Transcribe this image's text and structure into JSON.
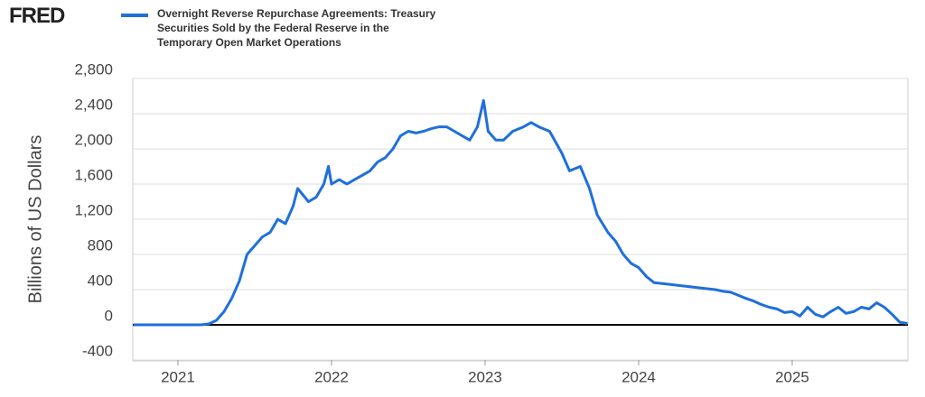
{
  "logo": "FRED",
  "chart_data": {
    "type": "line",
    "ylabel": "Billions of US Dollars",
    "x": [
      2020.71,
      2020.9,
      2021.0,
      2021.15,
      2021.2,
      2021.25,
      2021.3,
      2021.35,
      2021.4,
      2021.45,
      2021.5,
      2021.55,
      2021.6,
      2021.65,
      2021.7,
      2021.75,
      2021.78,
      2021.85,
      2021.9,
      2021.95,
      2021.98,
      2022.0,
      2022.05,
      2022.1,
      2022.15,
      2022.2,
      2022.25,
      2022.3,
      2022.35,
      2022.4,
      2022.45,
      2022.5,
      2022.55,
      2022.6,
      2022.65,
      2022.7,
      2022.75,
      2022.8,
      2022.85,
      2022.9,
      2022.95,
      2022.99,
      2023.02,
      2023.07,
      2023.12,
      2023.18,
      2023.25,
      2023.3,
      2023.35,
      2023.42,
      2023.5,
      2023.55,
      2023.62,
      2023.68,
      2023.73,
      2023.8,
      2023.85,
      2023.9,
      2023.95,
      2024.0,
      2024.05,
      2024.1,
      2024.2,
      2024.3,
      2024.4,
      2024.5,
      2024.55,
      2024.6,
      2024.7,
      2024.75,
      2024.8,
      2024.85,
      2024.9,
      2024.95,
      2025.0,
      2025.05,
      2025.1,
      2025.15,
      2025.2,
      2025.25,
      2025.3,
      2025.35,
      2025.4,
      2025.45,
      2025.5,
      2025.55,
      2025.6,
      2025.65,
      2025.7,
      2025.75
    ],
    "series": [
      {
        "name": "Overnight Reverse Repurchase Agreements: Treasury Securities Sold by the Federal Reserve in the Temporary Open Market Operations",
        "color": "#1f6fdc",
        "values": [
          0,
          0,
          0,
          0,
          10,
          50,
          150,
          300,
          500,
          800,
          900,
          1000,
          1050,
          1200,
          1150,
          1350,
          1550,
          1400,
          1450,
          1600,
          1800,
          1600,
          1650,
          1600,
          1650,
          1700,
          1750,
          1850,
          1900,
          2000,
          2150,
          2200,
          2180,
          2200,
          2230,
          2250,
          2250,
          2200,
          2150,
          2100,
          2250,
          2550,
          2200,
          2100,
          2100,
          2200,
          2250,
          2300,
          2250,
          2200,
          1950,
          1750,
          1800,
          1550,
          1250,
          1050,
          950,
          800,
          700,
          650,
          550,
          480,
          460,
          440,
          420,
          400,
          380,
          370,
          300,
          270,
          230,
          200,
          180,
          140,
          150,
          100,
          200,
          120,
          90,
          150,
          200,
          130,
          150,
          200,
          180,
          250,
          200,
          120,
          30,
          15
        ]
      }
    ],
    "xlim": [
      2020.706,
      2025.753
    ],
    "xticks": [
      2021,
      2022,
      2023,
      2024,
      2025
    ],
    "ylim": [
      -400,
      2800
    ],
    "yticks": [
      -400,
      0,
      400,
      800,
      {
        "value": 1200,
        "label": "1,200"
      },
      {
        "value": 1600,
        "label": "1,600"
      },
      {
        "value": 2000,
        "label": "2,000"
      },
      {
        "value": 2400,
        "label": "2,400"
      },
      {
        "value": 2800,
        "label": "2,800"
      }
    ],
    "grid": true
  }
}
